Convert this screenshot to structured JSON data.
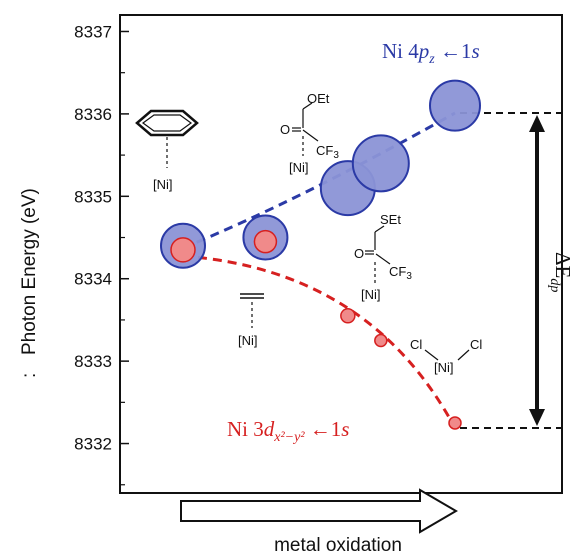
{
  "chart_data": {
    "type": "scatter",
    "title": "",
    "xlabel": "metal oxidation",
    "ylabel": "Photon Energy (eV)",
    "ylabel_prefix": ":",
    "ylim": [
      8331.4,
      8337.2
    ],
    "yticks": [
      "8337",
      "8336",
      "8335",
      "8334",
      "8333",
      "8332"
    ],
    "grid": false,
    "series": [
      {
        "name": "Ni 4pz ← 1s",
        "color": "#2b3aa6",
        "fill": "#8b93d6",
        "points": [
          {
            "x": 1,
            "y": 8334.4
          },
          {
            "x": 2,
            "y": 8334.5
          },
          {
            "x": 3,
            "y": 8335.1
          },
          {
            "x": 3.4,
            "y": 8335.4
          },
          {
            "x": 4.3,
            "y": 8336.1
          }
        ]
      },
      {
        "name": "Ni 3dx²−y² ← 1s",
        "color": "#d62020",
        "fill": "#f08a8a",
        "points": [
          {
            "x": 1,
            "y": 8334.35
          },
          {
            "x": 2,
            "y": 8334.45
          },
          {
            "x": 3,
            "y": 8333.55
          },
          {
            "x": 3.4,
            "y": 8333.25
          },
          {
            "x": 4.3,
            "y": 8332.25
          }
        ]
      }
    ],
    "annotations": {
      "top_label": {
        "base": "Ni 4",
        "var": "p",
        "sub": "z",
        "arrow": " ←1",
        "tail": "s"
      },
      "bottom_label": {
        "base": "Ni 3",
        "var": "d",
        "sub": "x²−y²",
        "arrow": " ←1",
        "tail": "s"
      },
      "delta_label": {
        "symbol": "ΔE",
        "sub": "dp"
      },
      "ligands": {
        "benzene": "[Ni]",
        "ester": {
          "group": "OEt",
          "o": "O",
          "cf3": "CF",
          "cf3_sub": "3",
          "ni": "[Ni]"
        },
        "thioester": {
          "group": "SEt",
          "o": "O",
          "cf3": "CF",
          "cf3_sub": "3",
          "ni": "[Ni]"
        },
        "alkyne": "[Ni]",
        "chloride": {
          "cl1": "Cl",
          "cl2": "Cl",
          "ni": "[Ni]"
        }
      }
    }
  }
}
